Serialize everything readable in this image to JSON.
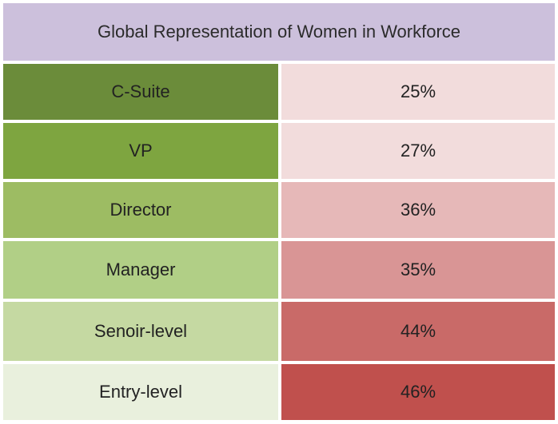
{
  "chart_data": {
    "type": "table",
    "title": "Global Representation of Women in Workforce",
    "categories": [
      "C-Suite",
      "VP",
      "Director",
      "Manager",
      "Senoir-level",
      "Entry-level"
    ],
    "values": [
      25,
      27,
      36,
      35,
      44,
      46
    ],
    "value_labels": [
      "25%",
      "27%",
      "36%",
      "35%",
      "44%",
      "46%"
    ],
    "label_colors": [
      "#6b8c3a",
      "#7ea540",
      "#9dbc63",
      "#b1cf86",
      "#c5d9a2",
      "#e9f0dd"
    ],
    "value_colors": [
      "#f2dcdc",
      "#f2dcdc",
      "#e6b8b8",
      "#d99595",
      "#c96a68",
      "#c0504d"
    ]
  }
}
